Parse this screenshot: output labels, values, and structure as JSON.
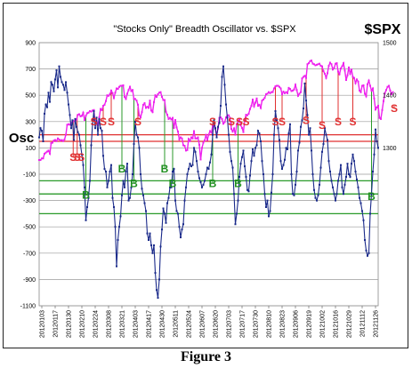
{
  "figure_caption": "Figure 3",
  "chart_data": {
    "type": "line",
    "title": "\"Stocks Only\" Breadth Oscillator vs. $SPX",
    "ylabel": "Osc",
    "y2label": "$SPX",
    "ylim": [
      -1100,
      900
    ],
    "y2lim": [
      1000,
      1500
    ],
    "y_ticks": [
      "900",
      "700",
      "500",
      "300",
      "100",
      "-100",
      "-300",
      "-500",
      "-700",
      "-900",
      "-1100"
    ],
    "y2_ticks": [
      "1500",
      "1400",
      "1300"
    ],
    "x_ticks": [
      "20120103",
      "20120117",
      "20120130",
      "20120210",
      "20120224",
      "20120308",
      "20120321",
      "20120403",
      "20120417",
      "20120430",
      "20120511",
      "20120524",
      "20120607",
      "20120620",
      "20120703",
      "20120717",
      "20120730",
      "20120810",
      "20120823",
      "20120906",
      "20120919",
      "20121002",
      "20121016",
      "20121029",
      "20121112",
      "20121126"
    ],
    "horizontal_lines": [
      {
        "value": 200,
        "color": "#e03030"
      },
      {
        "value": 150,
        "color": "#e03030"
      },
      {
        "value": -150,
        "color": "#2a9a2a"
      },
      {
        "value": -250,
        "color": "#2a9a2a"
      },
      {
        "value": -400,
        "color": "#2a9a2a"
      }
    ],
    "series": [
      {
        "name": "Osc",
        "color": "#1a2a8a",
        "values": [
          180,
          250,
          230,
          150,
          360,
          430,
          410,
          520,
          450,
          600,
          580,
          530,
          620,
          690,
          560,
          720,
          640,
          600,
          580,
          540,
          600,
          520,
          430,
          350,
          250,
          310,
          160,
          320,
          260,
          220,
          200,
          120,
          50,
          -30,
          -200,
          -450,
          -350,
          -280,
          -150,
          120,
          280,
          380,
          250,
          330,
          200,
          320,
          250,
          230,
          40,
          -60,
          -80,
          -200,
          -150,
          -80,
          -30,
          -280,
          -350,
          -500,
          -800,
          -600,
          -500,
          -420,
          -260,
          -150,
          -200,
          -80,
          -20,
          -300,
          -280,
          -200,
          -100,
          130,
          300,
          200,
          180,
          100,
          -100,
          -210,
          -260,
          -320,
          -380,
          -550,
          -600,
          -550,
          -640,
          -700,
          -640,
          -850,
          -980,
          -1040,
          -900,
          -650,
          -520,
          -360,
          -400,
          -470,
          -320,
          -280,
          -200,
          -200,
          -80,
          -60,
          -300,
          -380,
          -400,
          -500,
          -580,
          -520,
          -480,
          -300,
          -200,
          -100,
          -60,
          -20,
          -40,
          -30,
          100,
          70,
          0,
          -80,
          -130,
          -160,
          -200,
          -180,
          -150,
          -100,
          -50,
          -60,
          -10,
          50,
          200,
          310,
          250,
          180,
          260,
          290,
          420,
          640,
          720,
          580,
          430,
          330,
          200,
          70,
          0,
          -50,
          -250,
          -480,
          -400,
          -300,
          -120,
          -20,
          30,
          80,
          -40,
          -120,
          -220,
          -230,
          -110,
          0,
          90,
          40,
          100,
          120,
          230,
          210,
          150,
          0,
          -100,
          -250,
          -350,
          -300,
          -420,
          -380,
          -240,
          -100,
          200,
          380,
          310,
          250,
          160,
          0,
          -60,
          -30,
          10,
          100,
          90,
          210,
          280,
          -100,
          -250,
          -260,
          -180,
          -80,
          80,
          140,
          260,
          310,
          400,
          590,
          460,
          350,
          200,
          250,
          80,
          -100,
          -220,
          -280,
          -300,
          -260,
          -180,
          -50,
          70,
          130,
          250,
          200,
          160,
          0,
          -80,
          -150,
          -200,
          -250,
          -300,
          -250,
          -150,
          -100,
          -30,
          -200,
          -250,
          -180,
          -120,
          -20,
          -100,
          -120,
          -20,
          50,
          0,
          -80,
          -140,
          -200,
          -280,
          -320,
          -380,
          -450,
          -600,
          -680,
          -720,
          -700,
          -400,
          -250,
          -80,
          50,
          240,
          150,
          100
        ]
      },
      {
        "name": "$SPX",
        "color": "#ee22ee",
        "values": [
          1277,
          1277,
          1280,
          1280,
          1289,
          1291,
          1293,
          1295,
          1289,
          1309,
          1310,
          1314,
          1315,
          1313,
          1318,
          1316,
          1314,
          1315,
          1313,
          1316,
          1325,
          1344,
          1345,
          1344,
          1348,
          1351,
          1351,
          1350,
          1354,
          1363,
          1364,
          1360,
          1361,
          1367,
          1353,
          1361,
          1366,
          1367,
          1370,
          1369,
          1371,
          1372,
          1344,
          1352,
          1343,
          1358,
          1374,
          1372,
          1380,
          1382,
          1389,
          1400,
          1399,
          1402,
          1409,
          1404,
          1395,
          1405,
          1413,
          1412,
          1416,
          1418,
          1418,
          1419,
          1397,
          1393,
          1403,
          1410,
          1416,
          1408,
          1410,
          1393,
          1393,
          1390,
          1382,
          1362,
          1358,
          1368,
          1382,
          1385,
          1376,
          1378,
          1376,
          1390,
          1371,
          1368,
          1387,
          1400,
          1397,
          1402,
          1405,
          1406,
          1397,
          1391,
          1391,
          1369,
          1363,
          1355,
          1357,
          1354,
          1357,
          1338,
          1353,
          1339,
          1331,
          1316,
          1320,
          1318,
          1305,
          1304,
          1295,
          1296,
          1317,
          1313,
          1320,
          1318,
          1332,
          1318,
          1318,
          1320,
          1306,
          1278,
          1300,
          1310,
          1314,
          1325,
          1315,
          1325,
          1332,
          1329,
          1342,
          1344,
          1336,
          1325,
          1337,
          1357,
          1358,
          1355,
          1346,
          1349,
          1358,
          1362,
          1362,
          1357,
          1336,
          1331,
          1337,
          1325,
          1345,
          1350,
          1354,
          1343,
          1338,
          1330,
          1353,
          1363,
          1362,
          1365,
          1374,
          1380,
          1392,
          1379,
          1386,
          1394,
          1380,
          1382,
          1376,
          1390,
          1392,
          1395,
          1402,
          1403,
          1406,
          1404,
          1406,
          1406,
          1413,
          1417,
          1418,
          1418,
          1416,
          1413,
          1402,
          1407,
          1404,
          1406,
          1404,
          1414,
          1412,
          1408,
          1409,
          1411,
          1420,
          1410,
          1399,
          1403,
          1406,
          1432,
          1435,
          1437,
          1433,
          1459,
          1461,
          1465,
          1466,
          1460,
          1459,
          1457,
          1458,
          1459,
          1460,
          1456,
          1455,
          1446,
          1441,
          1433,
          1442,
          1456,
          1462,
          1459,
          1449,
          1452,
          1460,
          1461,
          1445,
          1440,
          1451,
          1455,
          1461,
          1447,
          1429,
          1438,
          1453,
          1441,
          1449,
          1435,
          1433,
          1423,
          1430,
          1426,
          1409,
          1406,
          1418,
          1419,
          1403,
          1398,
          1421,
          1428,
          1418,
          1409,
          1413,
          1394,
          1373,
          1377,
          1380,
          1357,
          1355,
          1372,
          1389,
          1404,
          1410,
          1416,
          1418,
          1409,
          1402,
          1406
        ]
      }
    ],
    "signals": [
      {
        "label": "S",
        "kind": "sell",
        "x": 25.5,
        "y": 30,
        "line": 1
      },
      {
        "label": "S",
        "kind": "sell",
        "x": 28.5,
        "y": 30,
        "line": 1
      },
      {
        "label": "S",
        "kind": "sell",
        "x": 31.5,
        "y": 30,
        "line": 0
      },
      {
        "label": "S",
        "kind": "sell",
        "x": 41,
        "y": 300,
        "line": 1
      },
      {
        "label": "S",
        "kind": "sell",
        "x": 48,
        "y": 300,
        "line": 1
      },
      {
        "label": "S",
        "kind": "sell",
        "x": 54,
        "y": 300,
        "line": 1
      },
      {
        "label": "S",
        "kind": "sell",
        "x": 74,
        "y": 300,
        "line": 1
      },
      {
        "label": "S",
        "kind": "sell",
        "x": 130,
        "y": 300,
        "line": 1
      },
      {
        "label": "S",
        "kind": "sell",
        "x": 144,
        "y": 300,
        "line": 1
      },
      {
        "label": "S",
        "kind": "sell",
        "x": 150,
        "y": 300,
        "line": 1
      },
      {
        "label": "S",
        "kind": "sell",
        "x": 155,
        "y": 300,
        "line": 1
      },
      {
        "label": "S",
        "kind": "sell",
        "x": 177,
        "y": 300,
        "line": 1
      },
      {
        "label": "S",
        "kind": "sell",
        "x": 182,
        "y": 300,
        "line": 1
      },
      {
        "label": "S",
        "kind": "sell",
        "x": 200,
        "y": 310,
        "line": 1
      },
      {
        "label": "S",
        "kind": "sell",
        "x": 212,
        "y": 270,
        "line": 1
      },
      {
        "label": "S",
        "kind": "sell",
        "x": 224,
        "y": 300,
        "line": 1
      },
      {
        "label": "S",
        "kind": "sell",
        "x": 235,
        "y": 300,
        "line": 1
      },
      {
        "label": "S",
        "kind": "sell",
        "x": 266,
        "y": 400,
        "line": 1
      },
      {
        "label": "B",
        "kind": "buy",
        "x": 35,
        "y": -260,
        "line": 1
      },
      {
        "label": "B",
        "kind": "buy",
        "x": 62,
        "y": -60,
        "line": 1
      },
      {
        "label": "B",
        "kind": "buy",
        "x": 71,
        "y": -170,
        "line": 1
      },
      {
        "label": "B",
        "kind": "buy",
        "x": 94,
        "y": -60,
        "line": 1
      },
      {
        "label": "B",
        "kind": "buy",
        "x": 100,
        "y": -170,
        "line": 1
      },
      {
        "label": "B",
        "kind": "buy",
        "x": 130,
        "y": -170,
        "line": 1
      },
      {
        "label": "B",
        "kind": "buy",
        "x": 149,
        "y": -170,
        "line": 1
      },
      {
        "label": "B",
        "kind": "buy",
        "x": 249,
        "y": -270,
        "line": 1
      }
    ]
  }
}
